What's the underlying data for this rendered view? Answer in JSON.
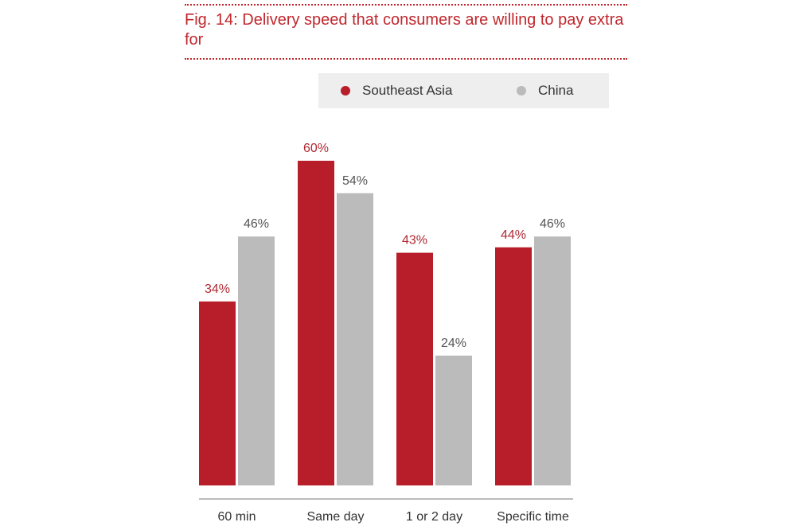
{
  "figure": {
    "title": "Fig. 14: Delivery speed that consumers are willing to pay extra for"
  },
  "colors": {
    "accent": "#c0272d",
    "southeast_asia": "#b81d2a",
    "china": "#bbbbbb",
    "label_red": "#b02a33",
    "label_gray": "#555555",
    "axis": "#777777"
  },
  "chart_data": {
    "type": "bar",
    "title": "Fig. 14: Delivery speed that consumers are willing to pay extra for",
    "categories": [
      "60 min",
      "Same day",
      "1 or 2 day",
      "Specific time"
    ],
    "series": [
      {
        "name": "Southeast Asia",
        "values": [
          34,
          60,
          43,
          44
        ],
        "labels": [
          "34%",
          "60%",
          "43%",
          "44%"
        ]
      },
      {
        "name": "China",
        "values": [
          46,
          54,
          24,
          46
        ],
        "labels": [
          "46%",
          "54%",
          "24%",
          "46%"
        ]
      }
    ],
    "ylim": [
      0,
      60
    ],
    "unit": "%",
    "grid": false,
    "legend_position": "top-right"
  }
}
